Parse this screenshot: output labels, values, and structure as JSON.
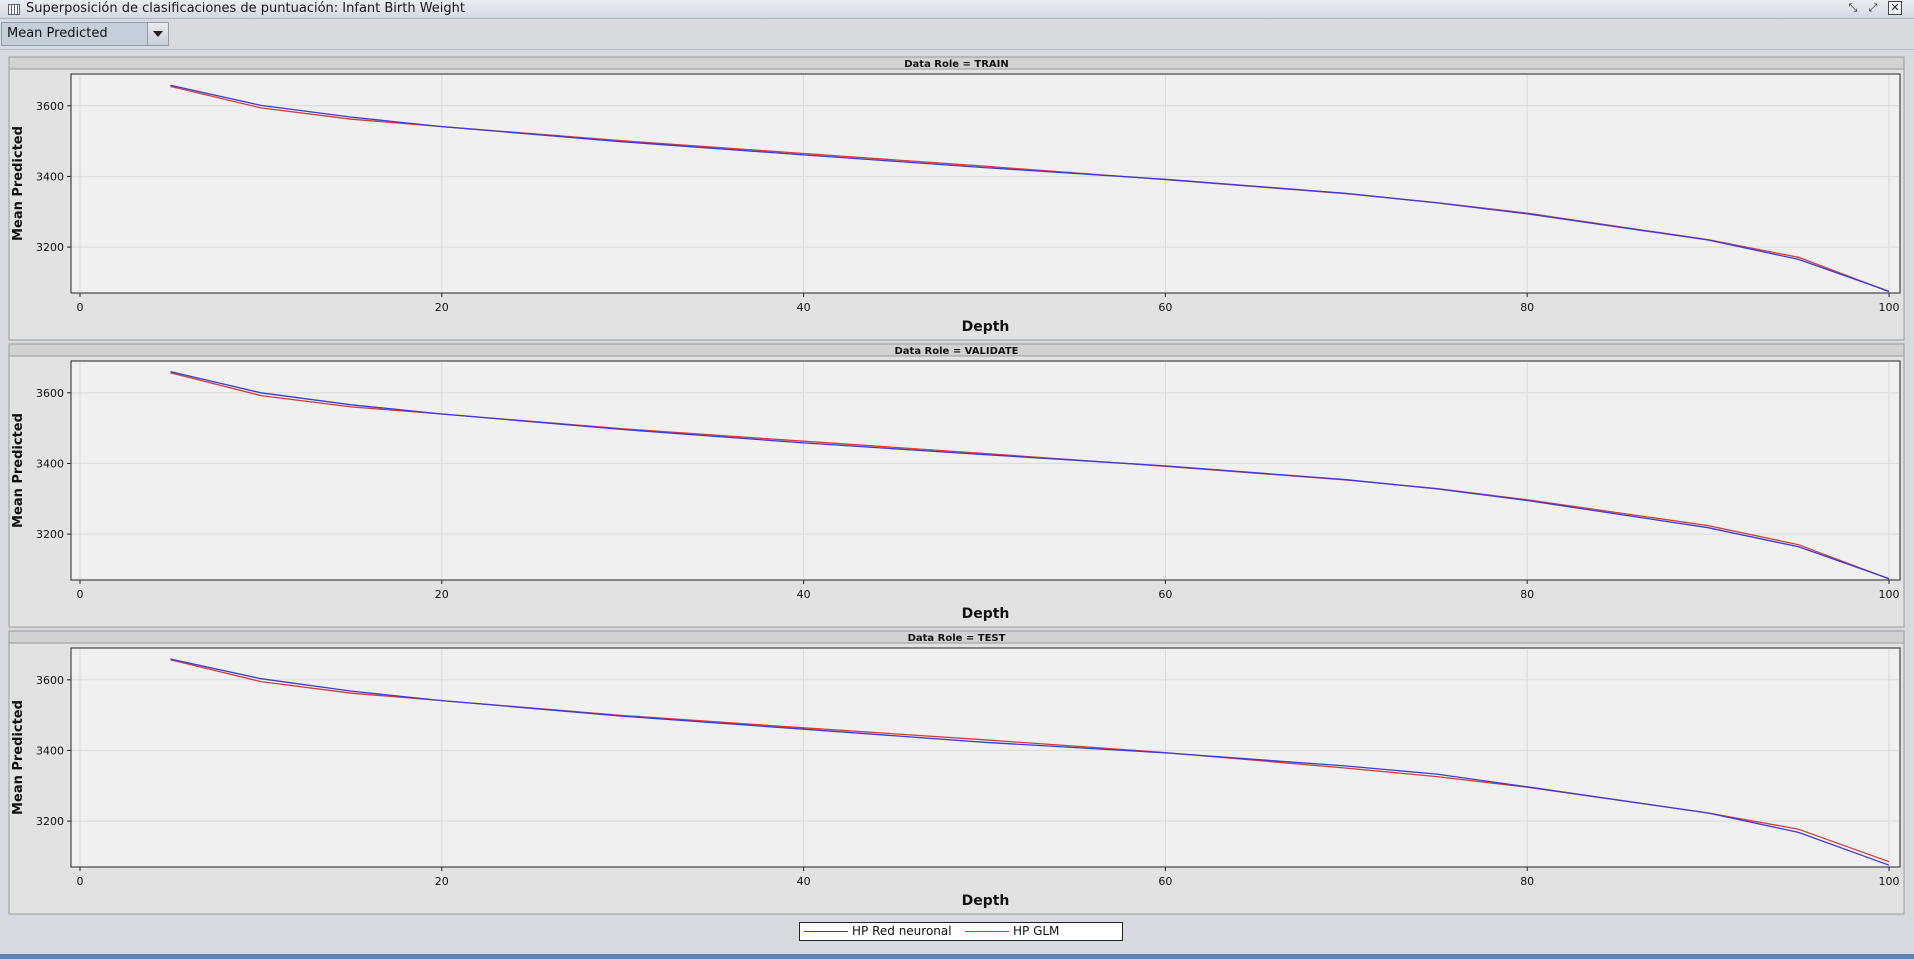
{
  "window": {
    "title": "Superposición de clasificaciones de puntuación: Infant Birth Weight",
    "controls": [
      "restore-icon",
      "maximize-icon",
      "close-icon"
    ]
  },
  "toolbar": {
    "statistic_select": {
      "selected": "Mean Predicted"
    }
  },
  "colors": {
    "neural": "#3b3bd6",
    "glm": "#d23b3b"
  },
  "legend": {
    "items": [
      {
        "label": "HP Red neuronal",
        "color": "#3b3bd6"
      },
      {
        "label": "HP GLM",
        "color": "#d23b3b"
      }
    ]
  },
  "chart_data": [
    {
      "type": "line",
      "title": "Data Role = TRAIN",
      "xlabel": "Depth",
      "ylabel": "Mean Predicted",
      "xlim": [
        0,
        100
      ],
      "ylim": [
        3070,
        3690
      ],
      "xticks": [
        0,
        20,
        40,
        60,
        80,
        100
      ],
      "yticks": [
        3200,
        3400,
        3600
      ],
      "grid": true,
      "x": [
        5,
        10,
        15,
        20,
        30,
        40,
        50,
        60,
        70,
        75,
        80,
        90,
        95,
        100
      ],
      "series": [
        {
          "name": "HP Red neuronal",
          "values": [
            3658,
            3601,
            3568,
            3541,
            3498,
            3461,
            3425,
            3392,
            3352,
            3325,
            3294,
            3220,
            3165,
            3075
          ]
        },
        {
          "name": "HP GLM",
          "values": [
            3655,
            3594,
            3562,
            3541,
            3501,
            3465,
            3429,
            3391,
            3351,
            3326,
            3296,
            3221,
            3171,
            3074
          ]
        }
      ]
    },
    {
      "type": "line",
      "title": "Data Role = VALIDATE",
      "xlabel": "Depth",
      "ylabel": "Mean Predicted",
      "xlim": [
        0,
        100
      ],
      "ylim": [
        3070,
        3690
      ],
      "xticks": [
        0,
        20,
        40,
        60,
        80,
        100
      ],
      "yticks": [
        3200,
        3400,
        3600
      ],
      "grid": true,
      "x": [
        5,
        10,
        15,
        20,
        30,
        40,
        50,
        60,
        70,
        75,
        80,
        90,
        95,
        100
      ],
      "series": [
        {
          "name": "HP Red neuronal",
          "values": [
            3660,
            3600,
            3566,
            3540,
            3496,
            3458,
            3425,
            3393,
            3354,
            3328,
            3295,
            3218,
            3164,
            3074
          ]
        },
        {
          "name": "HP GLM",
          "values": [
            3657,
            3592,
            3560,
            3540,
            3498,
            3463,
            3428,
            3392,
            3353,
            3329,
            3297,
            3224,
            3170,
            3073
          ]
        }
      ]
    },
    {
      "type": "line",
      "title": "Data Role = TEST",
      "xlabel": "Depth",
      "ylabel": "Mean Predicted",
      "xlim": [
        0,
        100
      ],
      "ylim": [
        3070,
        3690
      ],
      "xticks": [
        0,
        20,
        40,
        60,
        80,
        100
      ],
      "yticks": [
        3200,
        3400,
        3600
      ],
      "grid": true,
      "x": [
        5,
        10,
        15,
        20,
        30,
        40,
        50,
        60,
        70,
        75,
        80,
        90,
        95,
        100
      ],
      "series": [
        {
          "name": "HP Red neuronal",
          "values": [
            3659,
            3603,
            3568,
            3541,
            3497,
            3460,
            3423,
            3393,
            3356,
            3333,
            3297,
            3223,
            3168,
            3075
          ]
        },
        {
          "name": "HP GLM",
          "values": [
            3657,
            3595,
            3562,
            3541,
            3499,
            3464,
            3430,
            3394,
            3350,
            3326,
            3296,
            3223,
            3177,
            3085
          ]
        }
      ]
    }
  ]
}
